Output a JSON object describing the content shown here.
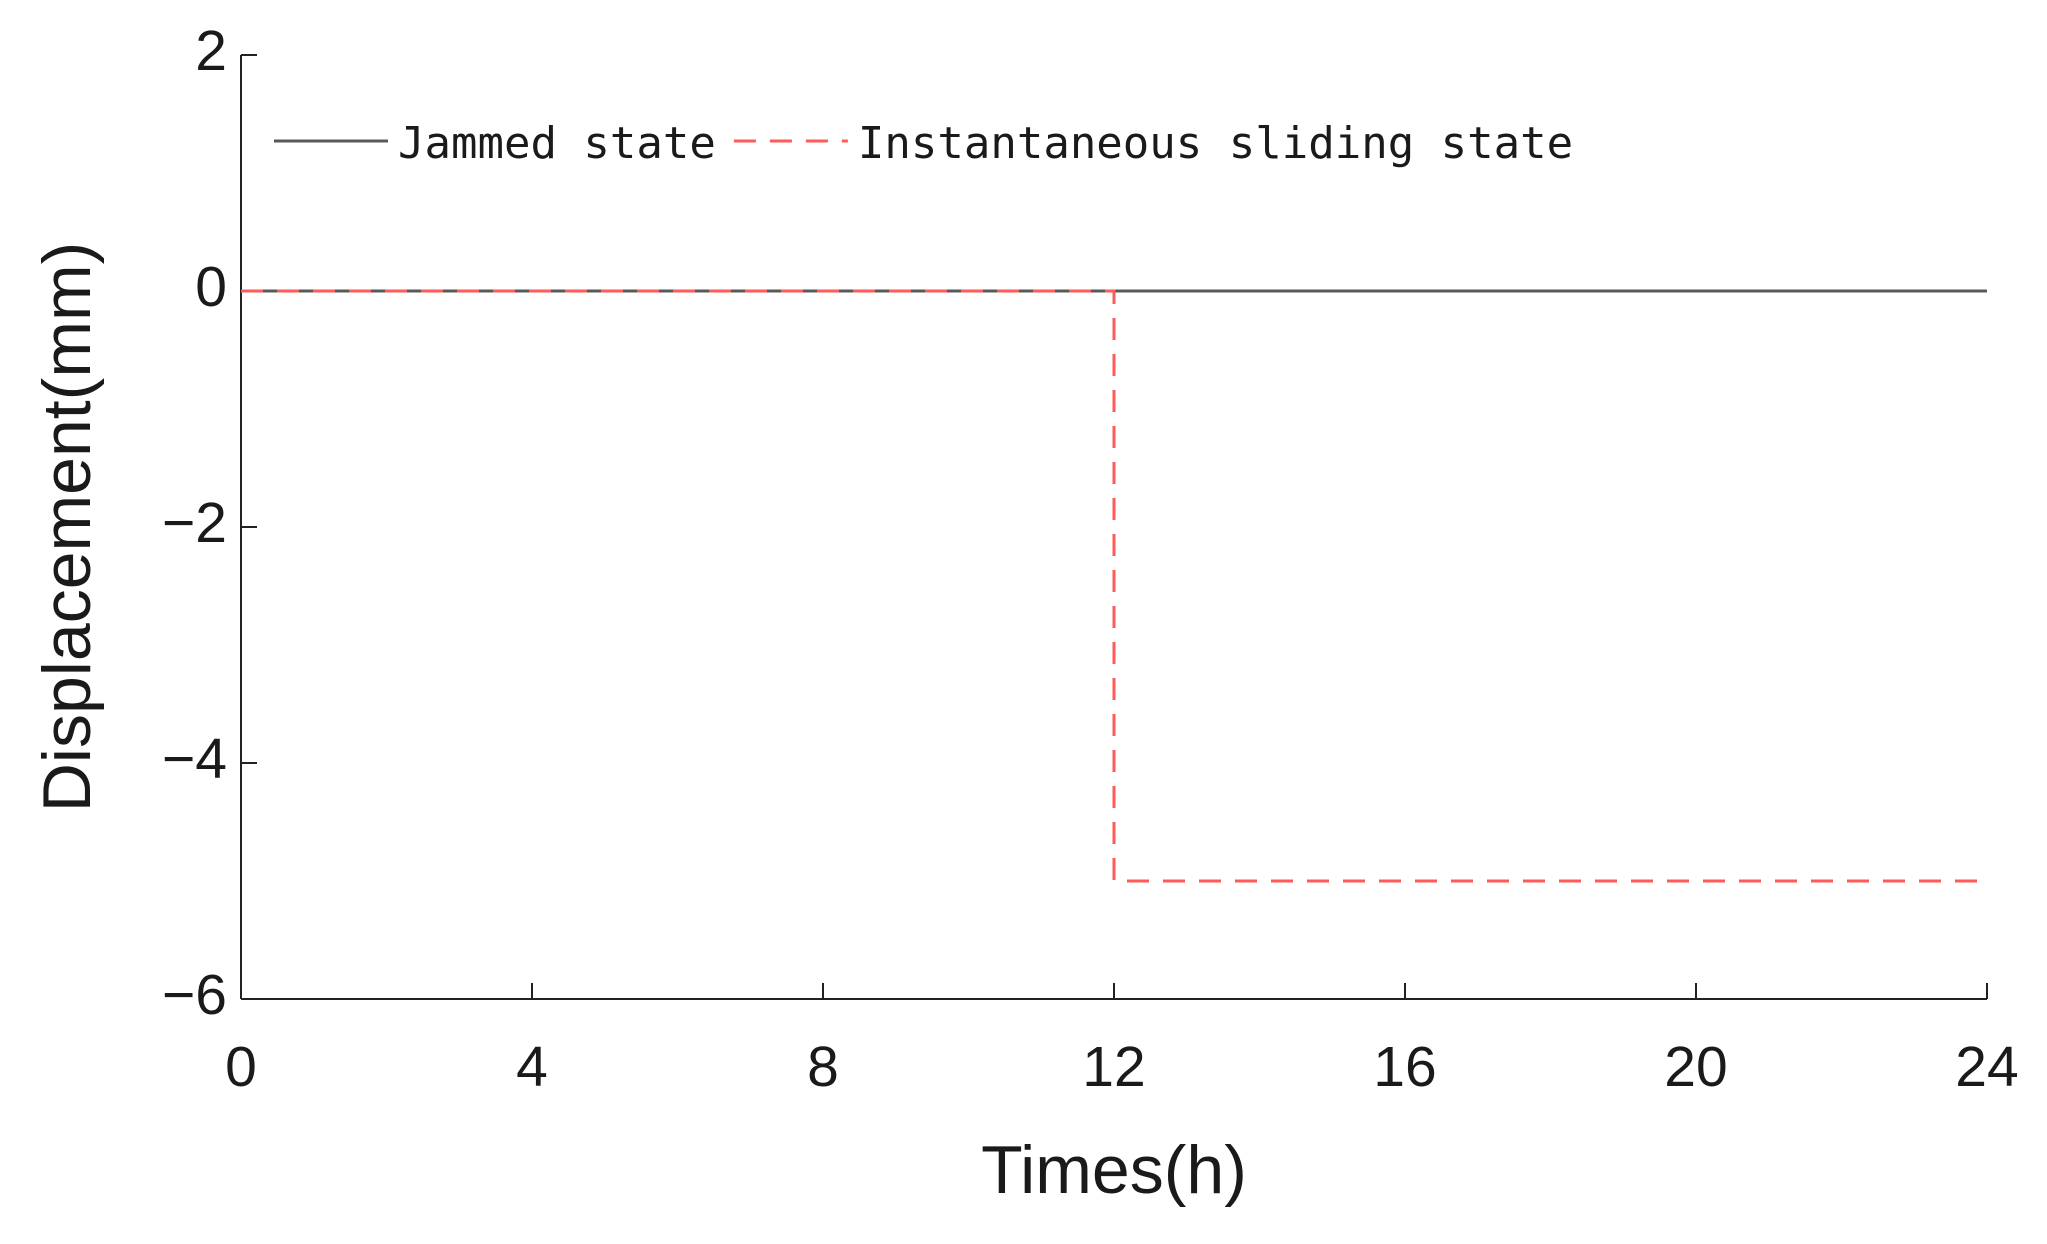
{
  "chart_data": {
    "type": "line",
    "xlabel": "Times(h)",
    "ylabel": "Displacement(mm)",
    "xlim": [
      0,
      24
    ],
    "xticks": [
      0,
      4,
      8,
      12,
      16,
      20,
      24
    ],
    "ylim": [
      -6,
      2
    ],
    "yticks": [
      2,
      0,
      {
        "value": -2,
        "label": "−2"
      },
      {
        "value": -4,
        "label": "−4"
      },
      {
        "value": -6,
        "label": "−6"
      }
    ],
    "legend": "upper left",
    "series": [
      {
        "name": "Jammed state",
        "color": "#595959",
        "dash": false,
        "x": [
          0,
          24
        ],
        "values": [
          0,
          0
        ]
      },
      {
        "name": "Instantaneous sliding state",
        "color": "#ff5a5a",
        "dash": true,
        "x": [
          0,
          12,
          12,
          24
        ],
        "values": [
          0,
          0,
          -5,
          -5
        ]
      }
    ]
  }
}
